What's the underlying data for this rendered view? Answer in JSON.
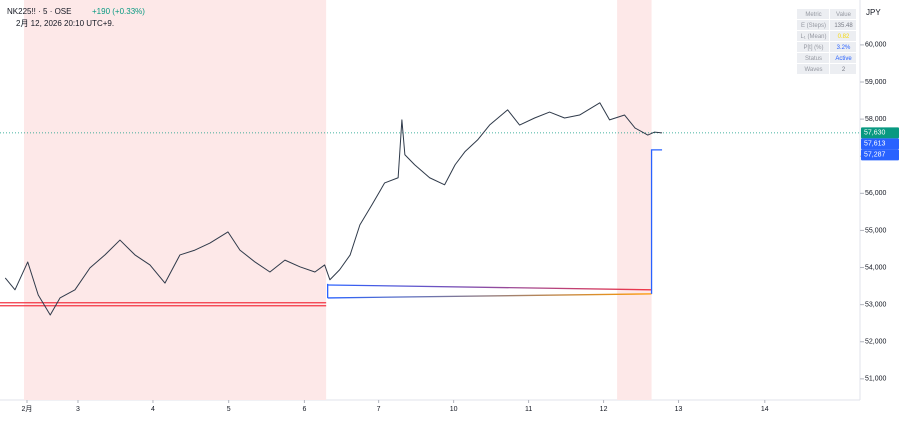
{
  "chart_data": {
    "type": "line",
    "symbol": "NK225!! · 5 · OSE",
    "change": "+190 (+0.33%)",
    "change_color": "#089981",
    "timestamp": "2月 12, 2026 20:10 UTC+9.",
    "currency": "JPY",
    "xlim": [
      -0.36,
      11.11
    ],
    "ylim": [
      50430,
      61210
    ],
    "xticks": [
      {
        "value": 0,
        "label": "2月"
      },
      {
        "value": 0.68,
        "label": "3"
      },
      {
        "value": 1.68,
        "label": "4"
      },
      {
        "value": 2.69,
        "label": "5"
      },
      {
        "value": 3.7,
        "label": "6"
      },
      {
        "value": 4.69,
        "label": "7"
      },
      {
        "value": 5.69,
        "label": "10"
      },
      {
        "value": 6.69,
        "label": "11"
      },
      {
        "value": 7.69,
        "label": "12"
      },
      {
        "value": 8.69,
        "label": "13"
      },
      {
        "value": 9.84,
        "label": "14"
      }
    ],
    "yticks": [
      {
        "value": 51000,
        "label": "51,000"
      },
      {
        "value": 52000,
        "label": "52,000"
      },
      {
        "value": 53000,
        "label": "53,000"
      },
      {
        "value": 54000,
        "label": "54,000"
      },
      {
        "value": 55000,
        "label": "55,000"
      },
      {
        "value": 56000,
        "label": "56,000"
      },
      {
        "value": 57000,
        "label": "57,000"
      },
      {
        "value": 58000,
        "label": "58,000"
      },
      {
        "value": 59000,
        "label": "59,000"
      },
      {
        "value": 60000,
        "label": "60,000"
      }
    ],
    "highlight_ranges": [
      [
        -0.04,
        3.99
      ],
      [
        7.87,
        8.33
      ]
    ],
    "highlight_color": "#fde8e8",
    "series": [
      {
        "color": "#2f3a4a",
        "x": [
          -0.29,
          -0.16,
          0.01,
          0.15,
          0.31,
          0.44,
          0.64,
          0.84,
          1.04,
          1.24,
          1.44,
          1.64,
          1.84,
          2.04,
          2.24,
          2.44,
          2.68,
          2.84,
          3.04,
          3.24,
          3.44,
          3.64,
          3.84,
          3.97,
          4.04,
          4.17,
          4.31,
          4.44,
          4.6,
          4.77,
          4.95,
          5.0,
          5.04,
          5.17,
          5.37,
          5.57,
          5.71,
          5.84,
          6.01,
          6.17,
          6.41,
          6.57,
          6.77,
          6.97,
          7.17,
          7.37,
          7.64,
          7.77,
          7.97,
          8.11,
          8.28,
          8.37,
          8.47
        ],
        "values": [
          53720,
          53400,
          54150,
          53260,
          52720,
          53180,
          53400,
          53990,
          54340,
          54740,
          54340,
          54070,
          53580,
          54340,
          54470,
          54660,
          54960,
          54470,
          54150,
          53880,
          54200,
          54020,
          53880,
          54070,
          53670,
          53940,
          54340,
          55150,
          55690,
          56280,
          56420,
          57980,
          57040,
          56770,
          56420,
          56230,
          56770,
          57120,
          57440,
          57840,
          58250,
          57840,
          58030,
          58190,
          58030,
          58110,
          58440,
          57980,
          58110,
          57760,
          57570,
          57650,
          57630
        ]
      }
    ],
    "overlay_lines": [
      {
        "colors": [
          "#f23645",
          "#f23645"
        ],
        "x": [
          -0.36,
          3.99
        ],
        "values": [
          53050,
          53050
        ]
      },
      {
        "colors": [
          "#f23645",
          "#f23645"
        ],
        "x": [
          -0.36,
          3.99
        ],
        "values": [
          52970,
          52970
        ]
      },
      {
        "colors": [
          "#2962ff",
          "#f23645"
        ],
        "x": [
          4.01,
          8.33
        ],
        "values": [
          53530,
          53400
        ]
      },
      {
        "colors": [
          "#2962ff",
          "#ff9800"
        ],
        "x": [
          4.01,
          8.33
        ],
        "values": [
          53180,
          53290
        ]
      },
      {
        "colors": [
          "#2962ff",
          "#2962ff"
        ],
        "x": [
          4.01,
          4.01
        ],
        "values": [
          53560,
          53180
        ]
      },
      {
        "colors": [
          "#2962ff",
          "#2962ff"
        ],
        "x": [
          8.33,
          8.33,
          8.47
        ],
        "values": [
          53290,
          57170,
          57170
        ]
      }
    ],
    "last_price_line": {
      "value": 57630,
      "color": "#089981"
    },
    "price_labels": [
      {
        "value": 57630,
        "label": "57,630",
        "color": "#089981"
      },
      {
        "value": 57613,
        "label": "57,613",
        "color": "#2962ff"
      },
      {
        "value": 57287,
        "label": "57,287",
        "color": "#2962ff"
      }
    ],
    "info_table": {
      "header": [
        "Metric",
        "Value"
      ],
      "rows": [
        [
          "E (Steps)",
          "135.48"
        ],
        [
          "L₁ (Mean)",
          "0.82"
        ],
        [
          "P[t] (%)",
          "3.2%"
        ],
        [
          "Status",
          "Active"
        ],
        [
          "Waves",
          "2"
        ]
      ],
      "highlight_colors": [
        "#787b86",
        "#f5d90a",
        "#2962ff",
        "#2962ff",
        "#787b86"
      ]
    }
  }
}
